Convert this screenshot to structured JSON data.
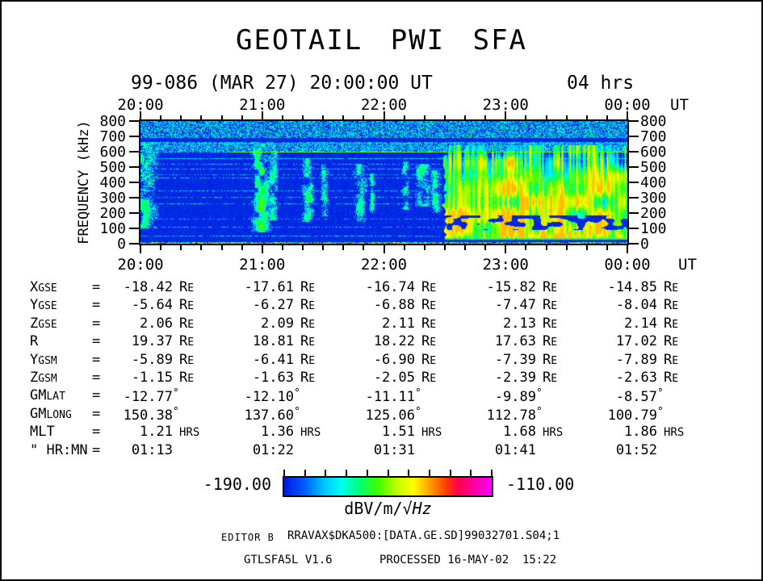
{
  "title": "GEOTAIL PWI SFA",
  "header": {
    "date_label": "99-086 (MAR 27) 20:00:00 UT",
    "duration_label": "04 hrs"
  },
  "time_axis": {
    "labels": [
      "20:00",
      "21:00",
      "22:00",
      "23:00",
      "00:00"
    ],
    "suffix": "UT"
  },
  "freq_axis": {
    "label": "FREQUENCY (kHz)",
    "ticks": [
      "800",
      "700",
      "600",
      "500",
      "400",
      "300",
      "200",
      "100",
      "0"
    ]
  },
  "ephemeris": {
    "eq": "=",
    "rows": [
      {
        "label_main": "X",
        "label_sub": "GSE",
        "values": [
          "-18.42",
          "-17.61",
          "-16.74",
          "-15.82",
          "-14.85"
        ],
        "unit": "RE"
      },
      {
        "label_main": "Y",
        "label_sub": "GSE",
        "values": [
          "-5.64",
          "-6.27",
          "-6.88",
          "-7.47",
          "-8.04"
        ],
        "unit": "RE"
      },
      {
        "label_main": "Z",
        "label_sub": "GSE",
        "values": [
          "2.06",
          "2.09",
          "2.11",
          "2.13",
          "2.14"
        ],
        "unit": "RE"
      },
      {
        "label_main": "R",
        "label_sub": "",
        "values": [
          "19.37",
          "18.81",
          "18.22",
          "17.63",
          "17.02"
        ],
        "unit": "RE"
      },
      {
        "label_main": "Y",
        "label_sub": "GSM",
        "values": [
          "-5.89",
          "-6.41",
          "-6.90",
          "-7.39",
          "-7.89"
        ],
        "unit": "RE"
      },
      {
        "label_main": "Z",
        "label_sub": "GSM",
        "values": [
          "-1.15",
          "-1.63",
          "-2.05",
          "-2.39",
          "-2.63"
        ],
        "unit": "RE"
      },
      {
        "label_main": "GM",
        "label_sub": "LAT",
        "values": [
          "-12.77",
          "-12.10",
          "-11.11",
          "-9.89",
          "-8.57"
        ],
        "unit": "°"
      },
      {
        "label_main": "GM",
        "label_sub": "LONG",
        "values": [
          "150.38",
          "137.60",
          "125.06",
          "112.78",
          "100.79"
        ],
        "unit": "°"
      },
      {
        "label_main": "MLT",
        "label_sub": "",
        "values": [
          "1.21",
          "1.36",
          "1.51",
          "1.68",
          "1.86"
        ],
        "unit": "HRS"
      },
      {
        "label_main": "\" HR:MN",
        "label_sub": "",
        "values": [
          "01:13",
          "01:22",
          "01:31",
          "01:41",
          "01:52"
        ],
        "unit": ""
      }
    ]
  },
  "colorbar": {
    "min_label": "-190.00",
    "max_label": "-110.00",
    "unit": {
      "prefix": "dBV/m/",
      "sqrt": "√",
      "tail": "Hz"
    },
    "gradient": [
      [
        0,
        "#0018e0"
      ],
      [
        10,
        "#0060ff"
      ],
      [
        20,
        "#00ccff"
      ],
      [
        28,
        "#00ffee"
      ],
      [
        36,
        "#00ff78"
      ],
      [
        45,
        "#3cff00"
      ],
      [
        55,
        "#c8ff00"
      ],
      [
        62,
        "#ffff00"
      ],
      [
        70,
        "#ffa000"
      ],
      [
        78,
        "#ff3c00"
      ],
      [
        84,
        "#ff0050"
      ],
      [
        100,
        "#ff00ff"
      ]
    ]
  },
  "footer": {
    "editor": "EDITOR B",
    "file": "RRAVAX$DKA500:[DATA.GE.SD]99032701.S04;1",
    "program": "GTLSFA5L V1.6",
    "processed": "PROCESSED 16-MAY-02  15:22"
  },
  "chart_data": {
    "type": "heatmap",
    "title": "GEOTAIL PWI SFA",
    "subtitle": "99-086 (MAR 27) 20:00:00 UT, 04 hrs",
    "xlabel": "UT",
    "ylabel": "FREQUENCY (kHz)",
    "x_tick_labels": [
      "20:00",
      "21:00",
      "22:00",
      "23:00",
      "00:00"
    ],
    "x_span_hours": 4,
    "x_minor_tick_minutes": 10,
    "ylim": [
      0,
      800
    ],
    "y_tick_step_khz": 100,
    "colorbar": {
      "min": -190.0,
      "max": -110.0,
      "units": "dBV/m/√Hz",
      "scale": "rainbow-blue-to-magenta"
    },
    "features": {
      "seed": 7,
      "background": "faint dark-blue noise floor near -187 dB",
      "top_noise_band_khz": [
        690,
        800
      ],
      "speckle_band_khz": [
        603,
        665
      ],
      "interference_lines": [
        [
          655,
          0.9
        ],
        [
          597,
          0.5
        ],
        [
          558,
          0.8
        ],
        [
          520,
          0.5
        ],
        [
          487,
          0.65
        ],
        [
          450,
          0.4
        ],
        [
          430,
          0.5
        ],
        [
          342,
          0.6
        ],
        [
          300,
          0.4
        ],
        [
          258,
          0.5
        ],
        [
          160,
          0.35
        ],
        [
          108,
          0.5
        ],
        [
          50,
          0.6
        ]
      ],
      "green_line": {
        "khz": 597,
        "start_frac": 0.18,
        "level": 0.44
      },
      "bursts": [
        {
          "t_frac": 0.01,
          "width": 0.022,
          "f_lo": 100,
          "f_hi": 665,
          "strength": 0.6
        },
        {
          "t_frac": 0.247,
          "width": 0.016,
          "f_lo": 70,
          "f_hi": 655,
          "strength": 1.0
        },
        {
          "t_frac": 0.272,
          "width": 0.009,
          "f_lo": 150,
          "f_hi": 620,
          "strength": 0.75
        },
        {
          "t_frac": 0.345,
          "width": 0.011,
          "f_lo": 140,
          "f_hi": 560,
          "strength": 0.7
        },
        {
          "t_frac": 0.378,
          "width": 0.007,
          "f_lo": 180,
          "f_hi": 520,
          "strength": 0.6
        },
        {
          "t_frac": 0.452,
          "width": 0.011,
          "f_lo": 140,
          "f_hi": 520,
          "strength": 0.7
        },
        {
          "t_frac": 0.475,
          "width": 0.006,
          "f_lo": 200,
          "f_hi": 460,
          "strength": 0.55
        },
        {
          "t_frac": 0.545,
          "width": 0.007,
          "f_lo": 220,
          "f_hi": 540,
          "strength": 0.6
        },
        {
          "t_frac": 0.578,
          "width": 0.013,
          "f_lo": 240,
          "f_hi": 520,
          "strength": 0.8
        },
        {
          "t_frac": 0.607,
          "width": 0.009,
          "f_lo": 200,
          "f_hi": 480,
          "strength": 0.65
        }
      ],
      "intense_region": {
        "start_frac": 0.625,
        "f_lo": 35,
        "f_hi": 645,
        "dark_blob_band_khz": [
          85,
          185
        ],
        "low_band_khz": [
          25,
          85
        ]
      },
      "bottom_speckle_khz": 10
    }
  }
}
